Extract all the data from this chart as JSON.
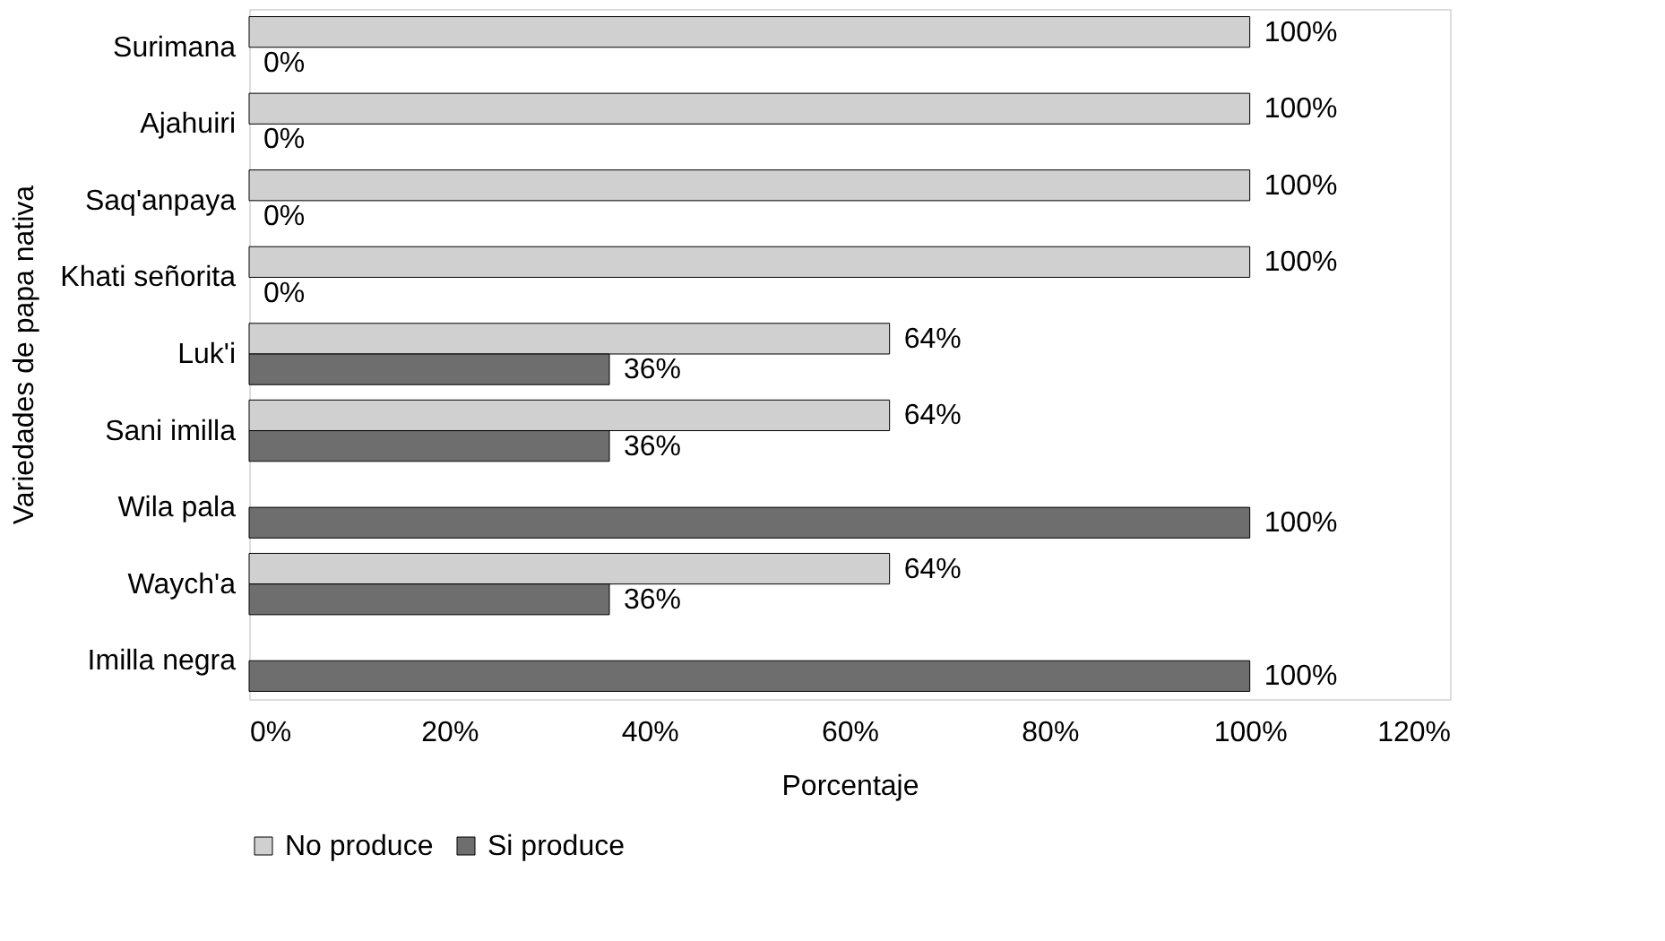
{
  "chart_data": {
    "type": "bar",
    "orientation": "horizontal",
    "categories": [
      "Surimana",
      "Ajahuiri",
      "Saq'anpaya",
      "Khati señorita",
      "Luk'i",
      "Sani imilla",
      "Wila pala",
      "Waych'a",
      "Imilla negra"
    ],
    "series": [
      {
        "name": "No produce",
        "color": "#d0d0d0",
        "values": [
          100,
          100,
          100,
          100,
          64,
          64,
          null,
          64,
          null
        ],
        "value_labels": [
          "100%",
          "100%",
          "100%",
          "100%",
          "64%",
          "64%",
          null,
          "64%",
          null
        ]
      },
      {
        "name": "Si produce",
        "color": "#6e6e6e",
        "values": [
          0,
          0,
          0,
          0,
          36,
          36,
          100,
          36,
          100
        ],
        "value_labels": [
          "0%",
          "0%",
          "0%",
          "0%",
          "36%",
          "36%",
          "100%",
          "36%",
          "100%"
        ]
      }
    ],
    "xlim": [
      0,
      120
    ],
    "xticks": [
      {
        "value": 0,
        "label": "0%"
      },
      {
        "value": 20,
        "label": "20%"
      },
      {
        "value": 40,
        "label": "40%"
      },
      {
        "value": 60,
        "label": "60%"
      },
      {
        "value": 80,
        "label": "80%"
      },
      {
        "value": 100,
        "label": "100%"
      },
      {
        "value": 120,
        "label": "120%"
      }
    ],
    "xlabel": "Porcentaje",
    "ylabel": "Variedades de papa nativa",
    "legend": "bottom",
    "grid": false
  }
}
